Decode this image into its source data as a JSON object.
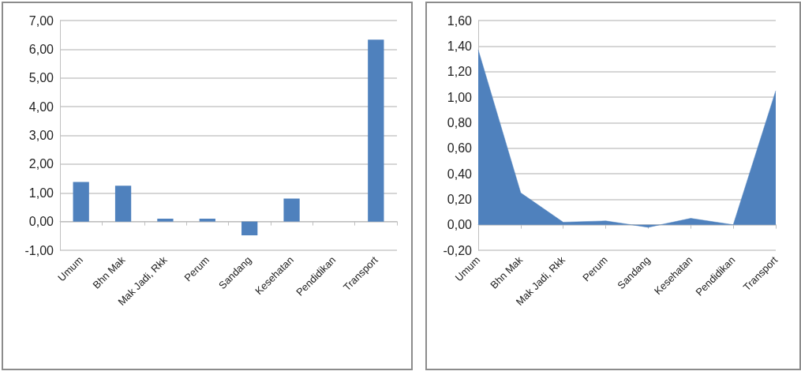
{
  "chart_data": [
    {
      "type": "bar",
      "categories": [
        "Umum",
        "Bhn Mak",
        "Mak Jadi, Rkk",
        "Perum",
        "Sandang",
        "Kesehatan",
        "Pendidikan",
        "Transport"
      ],
      "values": [
        1.38,
        1.25,
        0.1,
        0.1,
        -0.48,
        0.8,
        0,
        6.33
      ],
      "color": "#4f81bd",
      "ylim": [
        -1,
        7
      ],
      "yticks": [
        {
          "value": -1,
          "label": "-1,00"
        },
        {
          "value": 0,
          "label": "0,00"
        },
        {
          "value": 1,
          "label": "1,00"
        },
        {
          "value": 2,
          "label": "2,00"
        },
        {
          "value": 3,
          "label": "3,00"
        },
        {
          "value": 4,
          "label": "4,00"
        },
        {
          "value": 5,
          "label": "5,00"
        },
        {
          "value": 6,
          "label": "6,00"
        },
        {
          "value": 7,
          "label": "7,00"
        }
      ],
      "grid": "y"
    },
    {
      "type": "area",
      "categories": [
        "Umum",
        "Bhn Mak",
        "Mak Jadi, Rkk",
        "Perum",
        "Sandang",
        "Kesehatan",
        "Pendidikan",
        "Transport"
      ],
      "values": [
        1.37,
        0.25,
        0.02,
        0.03,
        -0.02,
        0.05,
        0,
        1.05
      ],
      "color": "#4f81bd",
      "ylim": [
        -0.2,
        1.6
      ],
      "yticks": [
        {
          "value": -0.2,
          "label": "-0,20"
        },
        {
          "value": 0,
          "label": "0,00"
        },
        {
          "value": 0.2,
          "label": "0,20"
        },
        {
          "value": 0.4,
          "label": "0,40"
        },
        {
          "value": 0.6,
          "label": "0,60"
        },
        {
          "value": 0.8,
          "label": "0,80"
        },
        {
          "value": 1,
          "label": "1,00"
        },
        {
          "value": 1.2,
          "label": "1,20"
        },
        {
          "value": 1.4,
          "label": "1,40"
        },
        {
          "value": 1.6,
          "label": "1,60"
        }
      ],
      "grid": "y"
    }
  ]
}
